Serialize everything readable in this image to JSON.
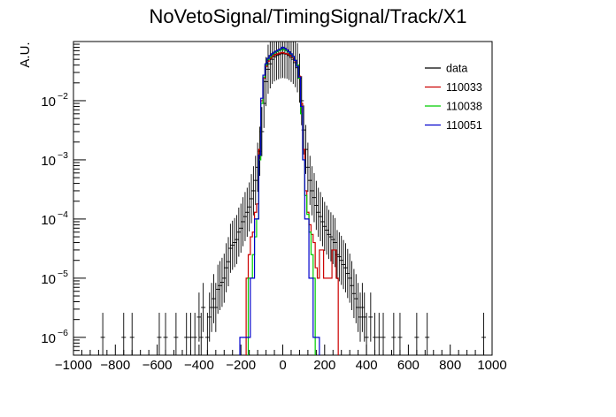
{
  "chart_data": {
    "type": "histogram",
    "title": "NoVetoSignal/TimingSignal/Track/X1",
    "ylabel": "A.U.",
    "xlabel": "",
    "xlim": [
      -1000,
      1000
    ],
    "ylim": [
      5e-07,
      0.1
    ],
    "yscale": "log",
    "grid": false,
    "legend_position": "top-right",
    "x_ticks": [
      "−1000",
      "−800",
      "−600",
      "−400",
      "−200",
      "0",
      "200",
      "400",
      "600",
      "800",
      "1000"
    ],
    "y_ticks": [
      {
        "base": "10",
        "exp": "−2",
        "value": 0.01
      },
      {
        "base": "10",
        "exp": "−3",
        "value": 0.001
      },
      {
        "base": "10",
        "exp": "−4",
        "value": 0.0001
      },
      {
        "base": "10",
        "exp": "−5",
        "value": 1e-05
      },
      {
        "base": "10",
        "exp": "−6",
        "value": 1e-06
      }
    ],
    "series": [
      {
        "name": "data",
        "style": "points",
        "color": "#000000",
        "points": [
          [
            -860,
            1e-06
          ],
          [
            -760,
            1e-06
          ],
          [
            -720,
            1e-06
          ],
          [
            -590,
            1e-06
          ],
          [
            -560,
            1e-06
          ],
          [
            -510,
            1e-06
          ],
          [
            -460,
            1e-06
          ],
          [
            -440,
            1e-06
          ],
          [
            -420,
            1e-06
          ],
          [
            -400,
            2.2e-06
          ],
          [
            -390,
            1e-06
          ],
          [
            -380,
            3.2e-06
          ],
          [
            -360,
            1e-06
          ],
          [
            -350,
            2.2e-06
          ],
          [
            -340,
            3.2e-06
          ],
          [
            -330,
            4.5e-06
          ],
          [
            -320,
            3.2e-06
          ],
          [
            -310,
            6.5e-06
          ],
          [
            -300,
            7.5e-06
          ],
          [
            -290,
            8.5e-06
          ],
          [
            -280,
            1e-05
          ],
          [
            -270,
            1.5e-05
          ],
          [
            -260,
            1.9e-05
          ],
          [
            -250,
            3.2e-05
          ],
          [
            -240,
            3.6e-05
          ],
          [
            -230,
            4e-05
          ],
          [
            -220,
            4.5e-05
          ],
          [
            -210,
            6e-05
          ],
          [
            -200,
            7e-05
          ],
          [
            -190,
            9e-05
          ],
          [
            -180,
            0.00011
          ],
          [
            -170,
            0.00013
          ],
          [
            -160,
            0.00016
          ],
          [
            -150,
            0.00022
          ],
          [
            -140,
            0.0003
          ],
          [
            -130,
            0.00045
          ],
          [
            -120,
            0.00075
          ],
          [
            -110,
            0.0014
          ],
          [
            -100,
            0.003
          ],
          [
            -90,
            0.009
          ],
          [
            -80,
            0.021
          ],
          [
            -70,
            0.034
          ],
          [
            -60,
            0.042
          ],
          [
            -50,
            0.05
          ],
          [
            -40,
            0.055
          ],
          [
            -30,
            0.058
          ],
          [
            -20,
            0.06
          ],
          [
            -10,
            0.062
          ],
          [
            0,
            0.063
          ],
          [
            10,
            0.062
          ],
          [
            20,
            0.061
          ],
          [
            30,
            0.058
          ],
          [
            40,
            0.054
          ],
          [
            50,
            0.05
          ],
          [
            60,
            0.044
          ],
          [
            70,
            0.036
          ],
          [
            80,
            0.024
          ],
          [
            90,
            0.01
          ],
          [
            100,
            0.0032
          ],
          [
            110,
            0.0015
          ],
          [
            120,
            0.00075
          ],
          [
            130,
            0.00045
          ],
          [
            140,
            0.0003
          ],
          [
            150,
            0.00023
          ],
          [
            160,
            0.00017
          ],
          [
            170,
            0.00013
          ],
          [
            180,
            0.00011
          ],
          [
            190,
            9e-05
          ],
          [
            200,
            7.5e-05
          ],
          [
            210,
            6.5e-05
          ],
          [
            220,
            5.5e-05
          ],
          [
            230,
            5e-05
          ],
          [
            240,
            4.5e-05
          ],
          [
            250,
            4e-05
          ],
          [
            260,
            2.5e-05
          ],
          [
            270,
            2.3e-05
          ],
          [
            280,
            2e-05
          ],
          [
            290,
            1.7e-05
          ],
          [
            300,
            1.5e-05
          ],
          [
            310,
            1.2e-05
          ],
          [
            320,
            1e-05
          ],
          [
            330,
            7.5e-06
          ],
          [
            340,
            5.5e-06
          ],
          [
            350,
            4.5e-06
          ],
          [
            360,
            3.2e-06
          ],
          [
            370,
            2.2e-06
          ],
          [
            380,
            3.2e-06
          ],
          [
            390,
            2.2e-06
          ],
          [
            400,
            1e-06
          ],
          [
            420,
            2.2e-06
          ],
          [
            440,
            1e-06
          ],
          [
            460,
            1e-06
          ],
          [
            480,
            1e-06
          ],
          [
            530,
            1e-06
          ],
          [
            560,
            1e-06
          ],
          [
            640,
            1e-06
          ],
          [
            690,
            1e-06
          ],
          [
            960,
            1e-06
          ]
        ]
      },
      {
        "name": "110033",
        "style": "step",
        "color": "#cc0000",
        "bin_width": 10,
        "bins": [
          [
            -170,
            1e-05
          ],
          [
            -160,
            2.5e-05
          ],
          [
            -150,
            5e-05
          ],
          [
            -140,
            6e-05
          ],
          [
            -130,
            0.00013
          ],
          [
            -120,
            0.00018
          ],
          [
            -110,
            0.0015
          ],
          [
            -100,
            0.01
          ],
          [
            -90,
            0.024
          ],
          [
            -80,
            0.038
          ],
          [
            -70,
            0.046
          ],
          [
            -60,
            0.052
          ],
          [
            -50,
            0.056
          ],
          [
            -40,
            0.059
          ],
          [
            -30,
            0.061
          ],
          [
            -20,
            0.062
          ],
          [
            -10,
            0.064
          ],
          [
            0,
            0.065
          ],
          [
            10,
            0.063
          ],
          [
            20,
            0.062
          ],
          [
            30,
            0.06
          ],
          [
            40,
            0.057
          ],
          [
            50,
            0.053
          ],
          [
            60,
            0.047
          ],
          [
            70,
            0.04
          ],
          [
            80,
            0.026
          ],
          [
            90,
            0.009
          ],
          [
            100,
            0.0015
          ],
          [
            110,
            0.0003
          ],
          [
            120,
            0.00013
          ],
          [
            130,
            8e-05
          ],
          [
            140,
            5.5e-05
          ],
          [
            150,
            4e-05
          ],
          [
            160,
            1.5e-05
          ],
          [
            170,
            1e-05
          ],
          [
            180,
            3e-05
          ],
          [
            190,
            3e-05
          ],
          [
            200,
            1e-05
          ],
          [
            210,
            1e-05
          ],
          [
            220,
            1e-05
          ],
          [
            230,
            1e-05
          ],
          [
            240,
            3e-05
          ],
          [
            250,
            3e-05
          ],
          [
            260,
            1e-05
          ]
        ]
      },
      {
        "name": "110038",
        "style": "step",
        "color": "#00cc00",
        "bin_width": 10,
        "bins": [
          [
            -160,
            1e-05
          ],
          [
            -150,
            1e-05
          ],
          [
            -140,
            2.5e-05
          ],
          [
            -130,
            5e-05
          ],
          [
            -120,
            0.0001
          ],
          [
            -110,
            0.001
          ],
          [
            -100,
            0.009
          ],
          [
            -90,
            0.025
          ],
          [
            -80,
            0.04
          ],
          [
            -70,
            0.05
          ],
          [
            -60,
            0.055
          ],
          [
            -50,
            0.06
          ],
          [
            -40,
            0.064
          ],
          [
            -30,
            0.067
          ],
          [
            -20,
            0.07
          ],
          [
            -10,
            0.072
          ],
          [
            0,
            0.074
          ],
          [
            10,
            0.072
          ],
          [
            20,
            0.07
          ],
          [
            30,
            0.066
          ],
          [
            40,
            0.061
          ],
          [
            50,
            0.055
          ],
          [
            60,
            0.048
          ],
          [
            70,
            0.04
          ],
          [
            80,
            0.024
          ],
          [
            90,
            0.006
          ],
          [
            100,
            0.001
          ],
          [
            110,
            0.00025
          ],
          [
            120,
            0.00012
          ],
          [
            130,
            6e-05
          ],
          [
            140,
            2.5e-05
          ],
          [
            150,
            1e-05
          ]
        ]
      },
      {
        "name": "110051",
        "style": "step",
        "color": "#0000cc",
        "bin_width": 10,
        "bins": [
          [
            -200,
            1e-06
          ],
          [
            -190,
            1e-06
          ],
          [
            -180,
            1e-06
          ],
          [
            -170,
            1e-06
          ],
          [
            -160,
            1e-06
          ],
          [
            -150,
            1e-05
          ],
          [
            -140,
            1e-05
          ],
          [
            -130,
            0.0001
          ],
          [
            -120,
            0.0001
          ],
          [
            -110,
            0.0012
          ],
          [
            -100,
            0.011
          ],
          [
            -90,
            0.027
          ],
          [
            -80,
            0.042
          ],
          [
            -70,
            0.052
          ],
          [
            -60,
            0.058
          ],
          [
            -50,
            0.062
          ],
          [
            -40,
            0.066
          ],
          [
            -30,
            0.069
          ],
          [
            -20,
            0.072
          ],
          [
            -10,
            0.075
          ],
          [
            0,
            0.08
          ],
          [
            10,
            0.077
          ],
          [
            20,
            0.072
          ],
          [
            30,
            0.067
          ],
          [
            40,
            0.062
          ],
          [
            50,
            0.056
          ],
          [
            60,
            0.048
          ],
          [
            70,
            0.038
          ],
          [
            80,
            0.025
          ],
          [
            90,
            0.008
          ],
          [
            100,
            0.001
          ],
          [
            110,
            0.0001
          ],
          [
            120,
            0.0001
          ],
          [
            130,
            1e-05
          ],
          [
            140,
            1e-05
          ],
          [
            150,
            1e-06
          ],
          [
            160,
            1e-06
          ],
          [
            170,
            1e-06
          ]
        ]
      }
    ]
  }
}
